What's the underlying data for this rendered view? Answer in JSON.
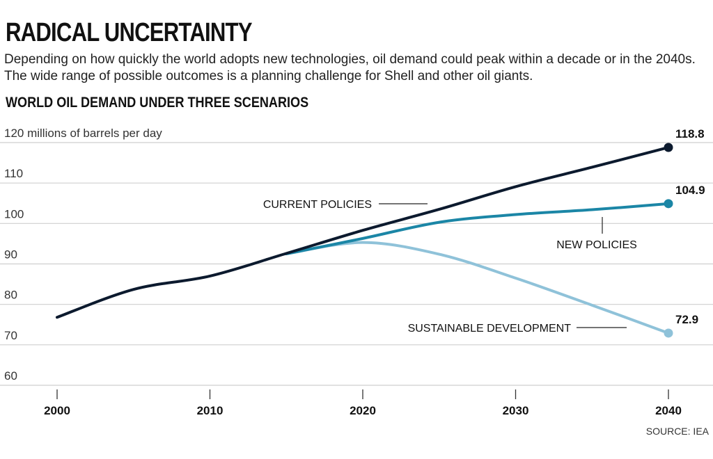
{
  "header": {
    "title": "RADICAL UNCERTAINTY",
    "subtitle": "Depending on how quickly the world adopts new technologies, oil demand could peak within a decade or in the 2040s. The wide range of possible outcomes is a planning challenge for Shell and other oil giants.",
    "chart_title": "WORLD OIL DEMAND UNDER THREE SCENARIOS",
    "source": "SOURCE: IEA"
  },
  "chart_data": {
    "type": "line",
    "title": "WORLD OIL DEMAND UNDER THREE SCENARIOS",
    "unit": "millions of barrels per day",
    "ylim": [
      60,
      120
    ],
    "yticks": [
      60,
      70,
      80,
      90,
      100,
      110,
      120
    ],
    "yticklabels": [
      "60",
      "70",
      "80",
      "90",
      "100",
      "110",
      "120 millions of barrels per day"
    ],
    "xlim": [
      2000,
      2040
    ],
    "xticks": [
      2000,
      2010,
      2020,
      2030,
      2040
    ],
    "xticklabels": [
      "2000",
      "2010",
      "2020",
      "2030",
      "2040"
    ],
    "grid": true,
    "series": [
      {
        "name": "SUSTAINABLE DEVELOPMENT",
        "color": "#8fc2d9",
        "x": [
          2015,
          2020,
          2025,
          2030,
          2035,
          2040
        ],
        "y": [
          92.5,
          95.3,
          92.4,
          86.5,
          79.8,
          72.9
        ],
        "end_label": "72.9"
      },
      {
        "name": "NEW POLICIES",
        "color": "#1b86a6",
        "x": [
          2015,
          2020,
          2025,
          2030,
          2035,
          2040
        ],
        "y": [
          92.5,
          96.3,
          100.3,
          102.2,
          103.4,
          104.9
        ],
        "end_label": "104.9"
      },
      {
        "name": "CURRENT POLICIES",
        "color": "#0c1a2e",
        "x": [
          2000,
          2005,
          2010,
          2015,
          2020,
          2025,
          2030,
          2035,
          2040
        ],
        "y": [
          76.8,
          83.7,
          87.0,
          92.6,
          98.3,
          103.5,
          109.1,
          113.9,
          118.8
        ],
        "end_label": "118.8"
      }
    ]
  }
}
